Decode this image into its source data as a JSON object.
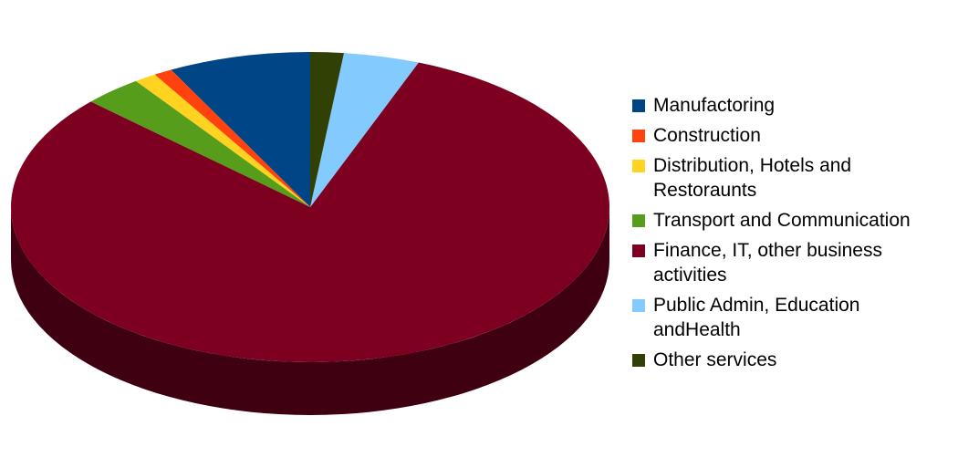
{
  "chart_data": {
    "type": "pie",
    "categories": [
      "Manufactoring",
      "Construction",
      "Distribution, Hotels and Restoraunts",
      "Transport and Communication",
      "Finance, IT, other business activities",
      "Public Admin, Education andHealth",
      "Other services"
    ],
    "values": [
      7.7,
      1.0,
      1.2,
      3.2,
      81,
      4.1,
      1.8
    ],
    "colors": [
      "#004586",
      "#ff420e",
      "#ffd320",
      "#579d1c",
      "#7e0021",
      "#83caff",
      "#314004"
    ],
    "legend": "right"
  }
}
